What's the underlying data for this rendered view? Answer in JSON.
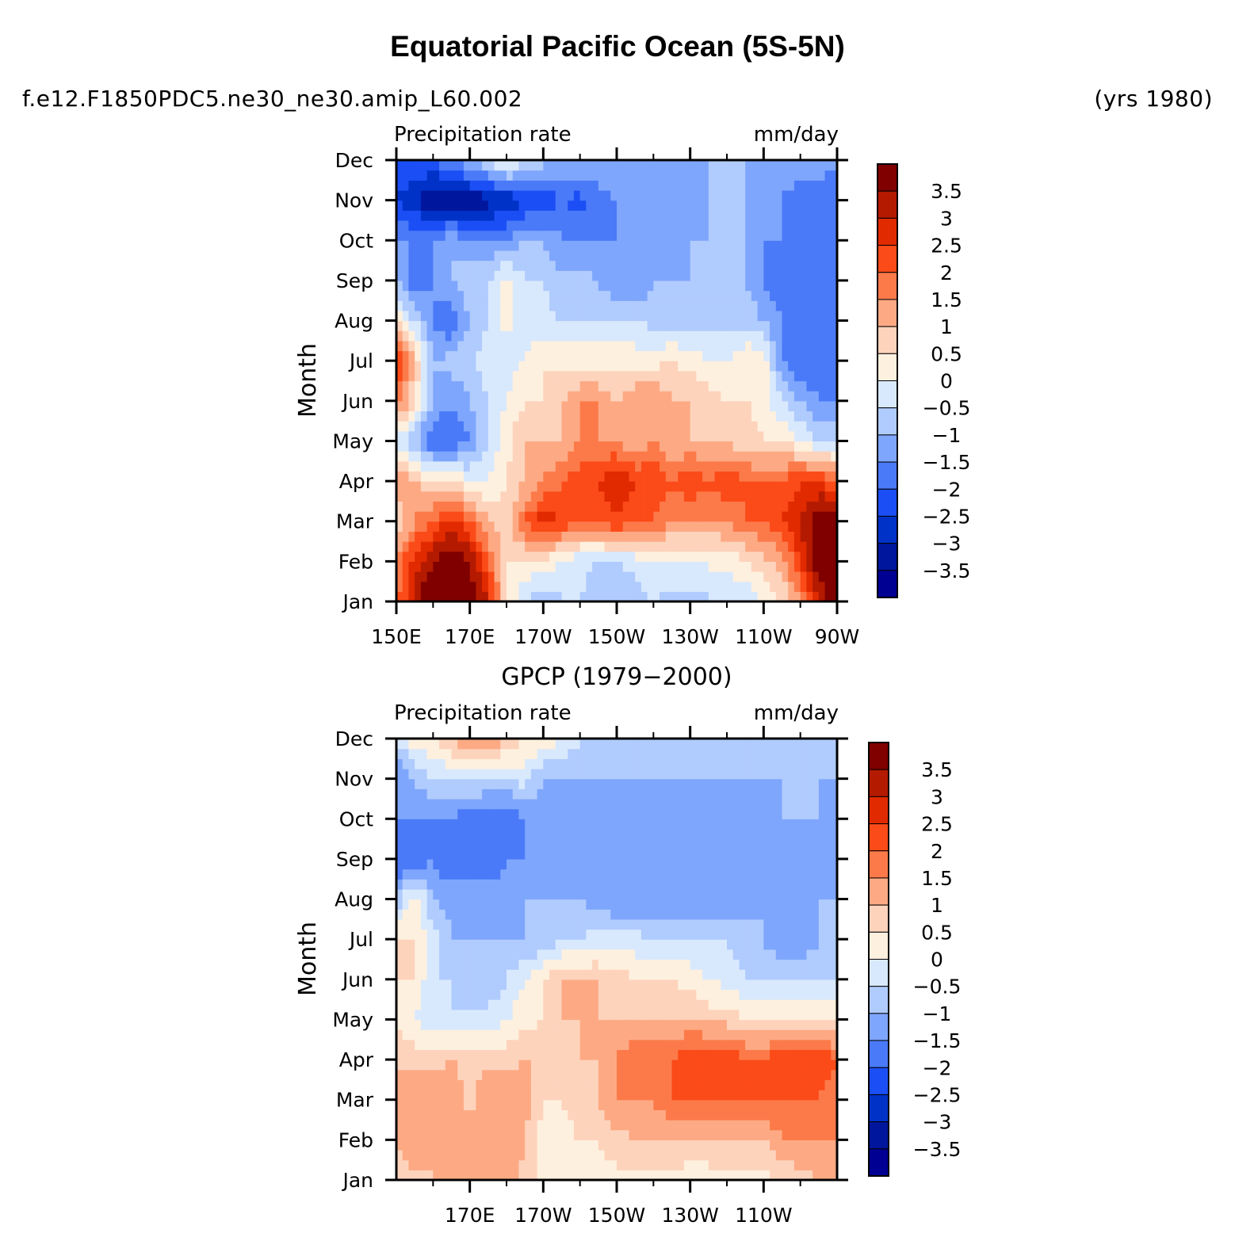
{
  "figure": {
    "title": "Equatorial Pacific Ocean (5S-5N)",
    "left_subtitle": "f.e12.F1850PDC5.ne30_ne30.amip_L60.002",
    "right_subtitle": "(yrs 1980)"
  },
  "chart_data": [
    {
      "type": "heatmap",
      "title": "",
      "left_string": "Precipitation rate",
      "right_string": "mm/day",
      "ylabel": "Month",
      "xlabel": "",
      "x_tick_labels": [
        "150E",
        "170E",
        "170W",
        "150W",
        "130W",
        "110W",
        "90W"
      ],
      "x_tick_lon_east": [
        150,
        170,
        190,
        210,
        230,
        250,
        270
      ],
      "x_minor_lon_east": [
        160,
        180,
        200,
        220,
        240,
        260
      ],
      "xlim_lon_east": [
        150,
        270
      ],
      "y_tick_labels": [
        "Jan",
        "Feb",
        "Mar",
        "Apr",
        "May",
        "Jun",
        "Jul",
        "Aug",
        "Sep",
        "Oct",
        "Nov",
        "Dec"
      ],
      "colorbar_levels": [
        -3.5,
        -3,
        -2.5,
        -2,
        -1.5,
        -1,
        -0.5,
        0,
        0.5,
        1,
        1.5,
        2,
        2.5,
        3,
        3.5
      ],
      "colorbar_labels": [
        "3.5",
        "3",
        "2.5",
        "2",
        "1.5",
        "1",
        "0.5",
        "0",
        "−0.5",
        "−1",
        "−1.5",
        "−2",
        "−2.5",
        "−3",
        "−3.5"
      ],
      "lon_grid": [
        150,
        155,
        160,
        165,
        170,
        175,
        180,
        185,
        190,
        195,
        200,
        205,
        210,
        215,
        220,
        225,
        230,
        235,
        240,
        245,
        250,
        255,
        260,
        265,
        270
      ],
      "values": [
        [
          2.0,
          3.0,
          4.5,
          4.5,
          4.0,
          3.0,
          0.5,
          -0.5,
          -1.0,
          -0.5,
          -0.5,
          -0.8,
          -1.0,
          -0.8,
          -0.5,
          -0.7,
          -0.7,
          -0.6,
          -0.5,
          -0.4,
          0.0,
          0.5,
          1.5,
          3.0,
          4.0
        ],
        [
          1.5,
          2.8,
          3.5,
          4.0,
          3.5,
          2.0,
          0.5,
          0.5,
          0.3,
          0.0,
          -0.4,
          -0.5,
          -0.5,
          -0.3,
          0.0,
          0.0,
          0.0,
          0.1,
          0.2,
          0.4,
          0.8,
          1.2,
          2.5,
          4.0,
          4.0
        ],
        [
          0.5,
          1.5,
          2.0,
          2.8,
          2.0,
          1.0,
          0.8,
          2.0,
          2.8,
          2.5,
          2.0,
          2.0,
          2.5,
          2.0,
          2.0,
          1.5,
          1.5,
          1.5,
          1.5,
          2.0,
          2.0,
          2.5,
          3.0,
          4.0,
          4.0
        ],
        [
          1.5,
          1.0,
          0.5,
          0.5,
          0.0,
          0.0,
          0.5,
          1.0,
          1.5,
          2.0,
          2.3,
          2.5,
          3.0,
          2.5,
          2.5,
          2.0,
          2.5,
          2.0,
          2.5,
          2.0,
          2.0,
          2.0,
          2.5,
          2.5,
          2.0
        ],
        [
          -0.5,
          -1.0,
          -2.0,
          -2.0,
          -1.5,
          -0.5,
          0.3,
          1.0,
          1.0,
          1.0,
          1.5,
          1.5,
          1.5,
          1.0,
          1.5,
          1.0,
          1.0,
          1.0,
          0.8,
          0.8,
          0.5,
          0.5,
          0.0,
          -0.5,
          -0.5
        ],
        [
          2.0,
          0.5,
          -1.0,
          -1.5,
          -1.0,
          -0.5,
          0.0,
          0.5,
          0.5,
          1.0,
          1.5,
          1.5,
          1.0,
          1.5,
          1.5,
          1.0,
          1.0,
          0.8,
          0.5,
          0.5,
          0.3,
          -0.5,
          -1.0,
          -1.5,
          -1.5
        ],
        [
          2.5,
          1.0,
          -1.0,
          -0.8,
          -0.5,
          -0.3,
          -0.3,
          0.0,
          0.5,
          0.3,
          0.3,
          0.3,
          0.3,
          0.3,
          0.3,
          0.5,
          0.3,
          0.0,
          0.0,
          0.5,
          0.3,
          -1.5,
          -2.0,
          -2.0,
          -2.0
        ],
        [
          0.5,
          -0.5,
          -1.5,
          -2.0,
          -1.0,
          -0.5,
          0.2,
          -0.2,
          -0.4,
          -0.5,
          -0.5,
          -0.5,
          -0.5,
          -0.5,
          -0.7,
          -0.7,
          -0.7,
          -0.7,
          -0.7,
          -0.7,
          -1.0,
          -1.5,
          -2.0,
          -2.0,
          -2.0
        ],
        [
          -1.0,
          -2.0,
          -1.5,
          -1.0,
          -0.5,
          -0.5,
          0.3,
          -0.5,
          -0.5,
          -0.8,
          -0.8,
          -1.0,
          -1.5,
          -1.5,
          -1.0,
          -1.0,
          -1.0,
          -1.0,
          -1.0,
          -1.0,
          -1.5,
          -2.0,
          -2.0,
          -2.0,
          -2.0
        ],
        [
          -1.5,
          -1.5,
          -1.5,
          -1.0,
          -1.5,
          -1.5,
          -1.5,
          -1.0,
          -1.0,
          -1.5,
          -1.5,
          -1.5,
          -1.5,
          -1.5,
          -1.5,
          -1.2,
          -1.0,
          -1.0,
          -1.0,
          -1.0,
          -1.5,
          -1.5,
          -2.0,
          -2.0,
          -2.0
        ],
        [
          -2.5,
          -3.0,
          -3.5,
          -3.5,
          -3.5,
          -3.2,
          -3.0,
          -2.5,
          -2.5,
          -2.0,
          -2.2,
          -1.8,
          -1.5,
          -1.5,
          -1.5,
          -1.5,
          -1.5,
          -1.0,
          -1.0,
          -1.0,
          -1.5,
          -1.5,
          -2.0,
          -2.0,
          -2.0
        ],
        [
          -2.0,
          -2.0,
          -2.0,
          -1.5,
          -1.0,
          -0.5,
          0.3,
          -0.5,
          -0.8,
          -1.0,
          -1.0,
          -1.0,
          -1.0,
          -1.0,
          -1.0,
          -1.0,
          -1.0,
          -1.0,
          -1.0,
          -1.0,
          -1.0,
          -1.0,
          -1.0,
          -1.0,
          -1.5
        ]
      ]
    },
    {
      "type": "heatmap",
      "title": "GPCP (1979−2000)",
      "left_string": "Precipitation rate",
      "right_string": "mm/day",
      "ylabel": "Month",
      "xlabel": "",
      "x_tick_labels": [
        "170E",
        "170W",
        "150W",
        "130W",
        "110W"
      ],
      "x_tick_lon_east": [
        170,
        190,
        210,
        230,
        250
      ],
      "x_minor_lon_east": [
        160,
        180,
        200,
        220,
        240,
        260
      ],
      "xlim_lon_east": [
        150,
        270
      ],
      "y_tick_labels": [
        "Jan",
        "Feb",
        "Mar",
        "Apr",
        "May",
        "Jun",
        "Jul",
        "Aug",
        "Sep",
        "Oct",
        "Nov",
        "Dec"
      ],
      "colorbar_levels": [
        -3.5,
        -3,
        -2.5,
        -2,
        -1.5,
        -1,
        -0.5,
        0,
        0.5,
        1,
        1.5,
        2,
        2.5,
        3,
        3.5
      ],
      "colorbar_labels": [
        "3.5",
        "3",
        "2.5",
        "2",
        "1.5",
        "1",
        "0.5",
        "0",
        "−0.5",
        "−1",
        "−1.5",
        "−2",
        "−2.5",
        "−3",
        "−3.5"
      ],
      "lon_grid": [
        150,
        155,
        160,
        165,
        170,
        175,
        180,
        185,
        190,
        195,
        200,
        205,
        210,
        215,
        220,
        225,
        230,
        235,
        240,
        245,
        250,
        255,
        260,
        265,
        270
      ],
      "values": [
        [
          0.5,
          0.8,
          1.0,
          1.0,
          1.0,
          1.5,
          1.5,
          0.8,
          0.3,
          0.3,
          0.3,
          0.3,
          0.3,
          0.3,
          0.3,
          0.3,
          0.1,
          0.2,
          0.2,
          0.3,
          0.3,
          0.5,
          0.8,
          1.0,
          1.5
        ],
        [
          1.0,
          1.5,
          1.0,
          1.5,
          1.5,
          1.0,
          1.5,
          1.0,
          0.3,
          0.3,
          0.5,
          0.5,
          0.8,
          1.0,
          1.0,
          1.0,
          1.0,
          1.0,
          1.0,
          1.0,
          1.0,
          1.5,
          1.5,
          1.5,
          1.5
        ],
        [
          1.0,
          1.5,
          1.5,
          1.5,
          0.8,
          1.5,
          1.5,
          1.2,
          0.5,
          0.5,
          0.8,
          1.0,
          1.5,
          1.5,
          1.5,
          2.0,
          2.0,
          2.0,
          2.0,
          2.0,
          2.0,
          2.0,
          2.0,
          2.0,
          1.5
        ],
        [
          1.0,
          0.8,
          0.8,
          1.0,
          0.8,
          0.8,
          0.8,
          1.0,
          1.0,
          0.5,
          1.0,
          1.0,
          1.5,
          2.0,
          2.0,
          2.0,
          2.5,
          2.5,
          2.5,
          2.0,
          2.0,
          2.5,
          2.5,
          2.5,
          2.0
        ],
        [
          0.5,
          0.0,
          -0.5,
          -0.5,
          -0.3,
          -0.3,
          0.0,
          0.3,
          0.5,
          1.0,
          1.0,
          1.0,
          1.0,
          1.0,
          1.0,
          1.0,
          1.0,
          0.8,
          0.8,
          0.5,
          0.5,
          0.5,
          0.5,
          0.5,
          0.5
        ],
        [
          0.5,
          0.5,
          -0.5,
          -0.5,
          -1.0,
          -1.0,
          -0.5,
          0.0,
          0.5,
          1.0,
          1.0,
          1.0,
          0.8,
          0.5,
          0.5,
          0.5,
          0.3,
          0.0,
          -0.2,
          -0.5,
          -0.5,
          -0.5,
          -0.5,
          -0.5,
          -0.5
        ],
        [
          0.5,
          0.5,
          -0.3,
          -1.0,
          -1.0,
          -1.0,
          -1.0,
          -1.0,
          -1.0,
          -0.5,
          -0.5,
          -0.3,
          -0.3,
          -0.3,
          -0.5,
          -0.5,
          -0.5,
          -0.5,
          -0.5,
          -0.8,
          -1.0,
          -1.5,
          -1.5,
          -1.0,
          -1.0
        ],
        [
          -1.0,
          0.5,
          -1.0,
          -1.2,
          -1.2,
          -1.2,
          -1.2,
          -1.0,
          -1.0,
          -1.0,
          -1.0,
          -1.2,
          -1.5,
          -1.5,
          -1.5,
          -1.5,
          -1.5,
          -1.5,
          -1.5,
          -1.2,
          -1.0,
          -1.5,
          -1.5,
          -1.0,
          -1.0
        ],
        [
          -2.0,
          -2.0,
          -1.5,
          -2.0,
          -2.0,
          -2.0,
          -1.5,
          -1.5,
          -1.2,
          -1.2,
          -1.2,
          -1.2,
          -1.5,
          -1.5,
          -1.5,
          -1.5,
          -1.5,
          -1.5,
          -1.5,
          -1.2,
          -1.0,
          -1.0,
          -1.5,
          -1.5,
          -1.5
        ],
        [
          -1.5,
          -1.5,
          -1.5,
          -1.5,
          -2.0,
          -2.0,
          -2.0,
          -1.5,
          -1.2,
          -1.5,
          -1.5,
          -1.2,
          -1.0,
          -1.5,
          -1.5,
          -1.5,
          -1.5,
          -1.5,
          -1.2,
          -1.5,
          -1.5,
          -1.0,
          -1.0,
          -1.0,
          -1.5
        ],
        [
          -1.5,
          -1.0,
          -0.5,
          -0.5,
          -0.3,
          -0.5,
          -0.5,
          -0.3,
          -1.0,
          -1.0,
          -1.0,
          -1.0,
          -1.0,
          -1.0,
          -1.0,
          -1.0,
          -1.0,
          -1.0,
          -1.0,
          -1.0,
          -1.0,
          -1.0,
          -1.0,
          -1.0,
          -1.0
        ],
        [
          -0.5,
          0.3,
          0.5,
          1.0,
          1.5,
          1.5,
          1.0,
          0.5,
          0.3,
          0.0,
          -0.5,
          -0.5,
          -0.5,
          -0.5,
          -0.5,
          -0.5,
          -0.8,
          -1.0,
          -1.0,
          -1.0,
          -1.0,
          -1.0,
          -1.0,
          -1.0,
          -1.0
        ]
      ]
    }
  ],
  "colors": {
    "contour_fills": [
      "#000092",
      "#00169c",
      "#0032c8",
      "#1b4ff5",
      "#4a7af8",
      "#7ea6fd",
      "#b0cbfd",
      "#d9e9fd",
      "#fef0de",
      "#fdd3bc",
      "#fdaa84",
      "#fc7a4a",
      "#fb4b18",
      "#e12a00",
      "#b31a00",
      "#800000"
    ]
  }
}
